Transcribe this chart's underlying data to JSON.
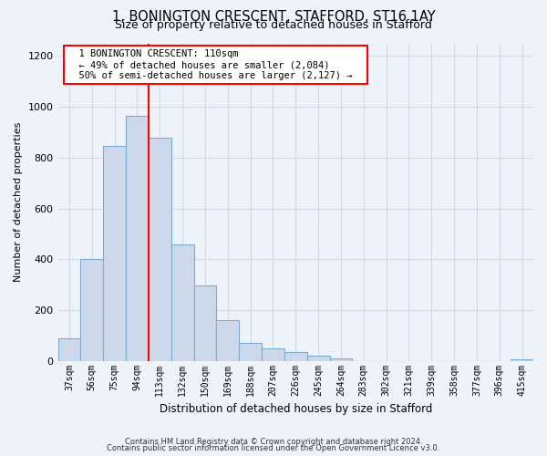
{
  "title1": "1, BONINGTON CRESCENT, STAFFORD, ST16 1AY",
  "title2": "Size of property relative to detached houses in Stafford",
  "xlabel": "Distribution of detached houses by size in Stafford",
  "ylabel": "Number of detached properties",
  "categories": [
    "37sqm",
    "56sqm",
    "75sqm",
    "94sqm",
    "113sqm",
    "132sqm",
    "150sqm",
    "169sqm",
    "188sqm",
    "207sqm",
    "226sqm",
    "245sqm",
    "264sqm",
    "283sqm",
    "302sqm",
    "321sqm",
    "339sqm",
    "358sqm",
    "377sqm",
    "396sqm",
    "415sqm"
  ],
  "values": [
    90,
    400,
    845,
    965,
    880,
    460,
    295,
    160,
    70,
    50,
    35,
    20,
    8,
    0,
    0,
    0,
    0,
    0,
    0,
    0,
    5
  ],
  "bar_color": "#cdd9ea",
  "bar_edge_color": "#7aadd4",
  "red_line_index": 4,
  "annotation_title": "1 BONINGTON CRESCENT: 110sqm",
  "annotation_line1": "← 49% of detached houses are smaller (2,084)",
  "annotation_line2": "50% of semi-detached houses are larger (2,127) →",
  "ylim": [
    0,
    1250
  ],
  "yticks": [
    0,
    200,
    400,
    600,
    800,
    1000,
    1200
  ],
  "grid_color": "#d0daea",
  "footnote1": "Contains HM Land Registry data © Crown copyright and database right 2024.",
  "footnote2": "Contains public sector information licensed under the Open Government Licence v3.0.",
  "bg_color": "#eef2f9",
  "plot_bg_color": "#eef2f9"
}
